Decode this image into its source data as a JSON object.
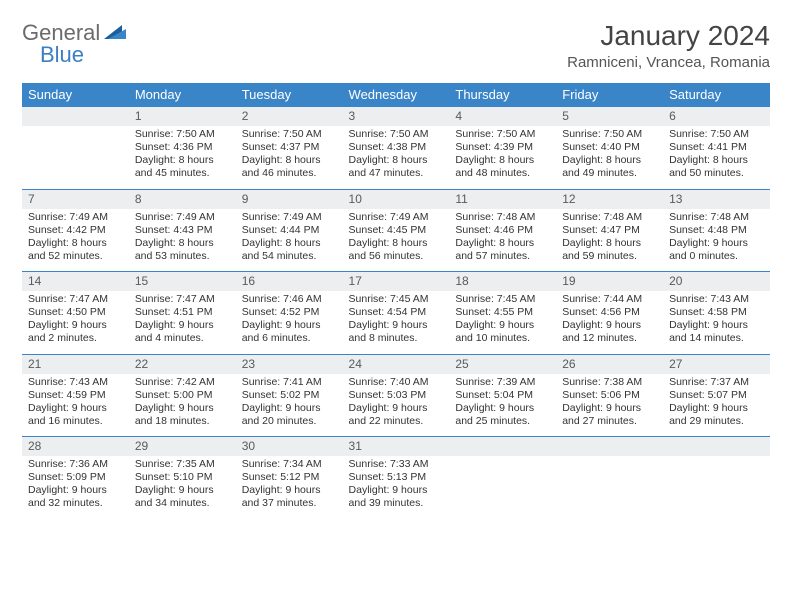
{
  "logo": {
    "part1": "General",
    "part2": "Blue"
  },
  "title": "January 2024",
  "location": "Ramniceni, Vrancea, Romania",
  "colors": {
    "header_bg": "#3a85c8",
    "header_text": "#ffffff",
    "daynum_bg": "#eceef0",
    "border": "#3a85c8",
    "logo_gray": "#6b6b6b",
    "logo_blue": "#3a7fc4"
  },
  "daysOfWeek": [
    "Sunday",
    "Monday",
    "Tuesday",
    "Wednesday",
    "Thursday",
    "Friday",
    "Saturday"
  ],
  "weeks": [
    [
      null,
      {
        "n": "1",
        "sr": "7:50 AM",
        "ss": "4:36 PM",
        "d1": "Daylight: 8 hours",
        "d2": "and 45 minutes."
      },
      {
        "n": "2",
        "sr": "7:50 AM",
        "ss": "4:37 PM",
        "d1": "Daylight: 8 hours",
        "d2": "and 46 minutes."
      },
      {
        "n": "3",
        "sr": "7:50 AM",
        "ss": "4:38 PM",
        "d1": "Daylight: 8 hours",
        "d2": "and 47 minutes."
      },
      {
        "n": "4",
        "sr": "7:50 AM",
        "ss": "4:39 PM",
        "d1": "Daylight: 8 hours",
        "d2": "and 48 minutes."
      },
      {
        "n": "5",
        "sr": "7:50 AM",
        "ss": "4:40 PM",
        "d1": "Daylight: 8 hours",
        "d2": "and 49 minutes."
      },
      {
        "n": "6",
        "sr": "7:50 AM",
        "ss": "4:41 PM",
        "d1": "Daylight: 8 hours",
        "d2": "and 50 minutes."
      }
    ],
    [
      {
        "n": "7",
        "sr": "7:49 AM",
        "ss": "4:42 PM",
        "d1": "Daylight: 8 hours",
        "d2": "and 52 minutes."
      },
      {
        "n": "8",
        "sr": "7:49 AM",
        "ss": "4:43 PM",
        "d1": "Daylight: 8 hours",
        "d2": "and 53 minutes."
      },
      {
        "n": "9",
        "sr": "7:49 AM",
        "ss": "4:44 PM",
        "d1": "Daylight: 8 hours",
        "d2": "and 54 minutes."
      },
      {
        "n": "10",
        "sr": "7:49 AM",
        "ss": "4:45 PM",
        "d1": "Daylight: 8 hours",
        "d2": "and 56 minutes."
      },
      {
        "n": "11",
        "sr": "7:48 AM",
        "ss": "4:46 PM",
        "d1": "Daylight: 8 hours",
        "d2": "and 57 minutes."
      },
      {
        "n": "12",
        "sr": "7:48 AM",
        "ss": "4:47 PM",
        "d1": "Daylight: 8 hours",
        "d2": "and 59 minutes."
      },
      {
        "n": "13",
        "sr": "7:48 AM",
        "ss": "4:48 PM",
        "d1": "Daylight: 9 hours",
        "d2": "and 0 minutes."
      }
    ],
    [
      {
        "n": "14",
        "sr": "7:47 AM",
        "ss": "4:50 PM",
        "d1": "Daylight: 9 hours",
        "d2": "and 2 minutes."
      },
      {
        "n": "15",
        "sr": "7:47 AM",
        "ss": "4:51 PM",
        "d1": "Daylight: 9 hours",
        "d2": "and 4 minutes."
      },
      {
        "n": "16",
        "sr": "7:46 AM",
        "ss": "4:52 PM",
        "d1": "Daylight: 9 hours",
        "d2": "and 6 minutes."
      },
      {
        "n": "17",
        "sr": "7:45 AM",
        "ss": "4:54 PM",
        "d1": "Daylight: 9 hours",
        "d2": "and 8 minutes."
      },
      {
        "n": "18",
        "sr": "7:45 AM",
        "ss": "4:55 PM",
        "d1": "Daylight: 9 hours",
        "d2": "and 10 minutes."
      },
      {
        "n": "19",
        "sr": "7:44 AM",
        "ss": "4:56 PM",
        "d1": "Daylight: 9 hours",
        "d2": "and 12 minutes."
      },
      {
        "n": "20",
        "sr": "7:43 AM",
        "ss": "4:58 PM",
        "d1": "Daylight: 9 hours",
        "d2": "and 14 minutes."
      }
    ],
    [
      {
        "n": "21",
        "sr": "7:43 AM",
        "ss": "4:59 PM",
        "d1": "Daylight: 9 hours",
        "d2": "and 16 minutes."
      },
      {
        "n": "22",
        "sr": "7:42 AM",
        "ss": "5:00 PM",
        "d1": "Daylight: 9 hours",
        "d2": "and 18 minutes."
      },
      {
        "n": "23",
        "sr": "7:41 AM",
        "ss": "5:02 PM",
        "d1": "Daylight: 9 hours",
        "d2": "and 20 minutes."
      },
      {
        "n": "24",
        "sr": "7:40 AM",
        "ss": "5:03 PM",
        "d1": "Daylight: 9 hours",
        "d2": "and 22 minutes."
      },
      {
        "n": "25",
        "sr": "7:39 AM",
        "ss": "5:04 PM",
        "d1": "Daylight: 9 hours",
        "d2": "and 25 minutes."
      },
      {
        "n": "26",
        "sr": "7:38 AM",
        "ss": "5:06 PM",
        "d1": "Daylight: 9 hours",
        "d2": "and 27 minutes."
      },
      {
        "n": "27",
        "sr": "7:37 AM",
        "ss": "5:07 PM",
        "d1": "Daylight: 9 hours",
        "d2": "and 29 minutes."
      }
    ],
    [
      {
        "n": "28",
        "sr": "7:36 AM",
        "ss": "5:09 PM",
        "d1": "Daylight: 9 hours",
        "d2": "and 32 minutes."
      },
      {
        "n": "29",
        "sr": "7:35 AM",
        "ss": "5:10 PM",
        "d1": "Daylight: 9 hours",
        "d2": "and 34 minutes."
      },
      {
        "n": "30",
        "sr": "7:34 AM",
        "ss": "5:12 PM",
        "d1": "Daylight: 9 hours",
        "d2": "and 37 minutes."
      },
      {
        "n": "31",
        "sr": "7:33 AM",
        "ss": "5:13 PM",
        "d1": "Daylight: 9 hours",
        "d2": "and 39 minutes."
      },
      null,
      null,
      null
    ]
  ]
}
